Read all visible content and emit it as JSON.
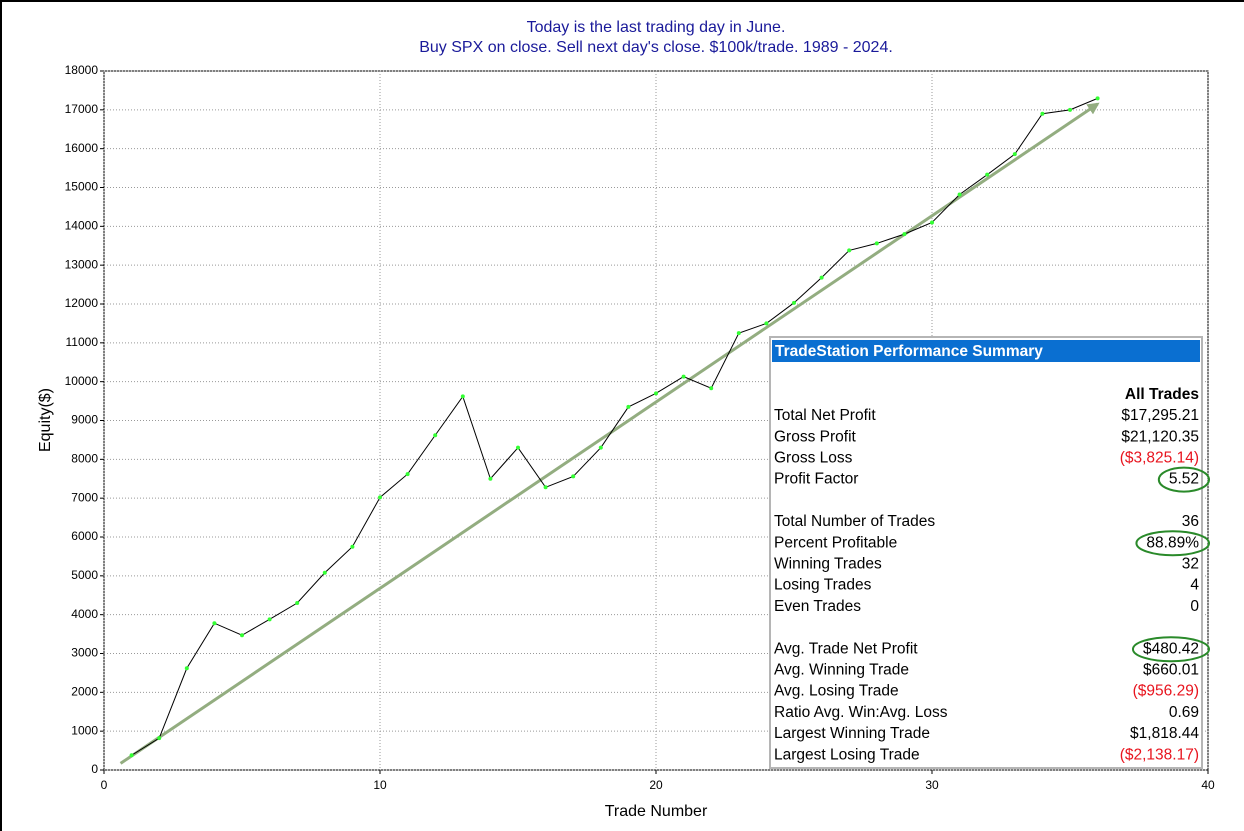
{
  "chart_data": {
    "type": "line",
    "title": "Today is the last trading day in June.",
    "subtitle": "Buy SPX on close. Sell next day's close. $100k/trade. 1989 - 2024.",
    "x_label": "Trade Number",
    "y_label": "Equity($)",
    "x": [
      1,
      2,
      3,
      4,
      5,
      6,
      7,
      8,
      9,
      10,
      11,
      12,
      13,
      14,
      15,
      16,
      17,
      18,
      19,
      20,
      21,
      22,
      23,
      24,
      25,
      26,
      27,
      28,
      29,
      30,
      31,
      32,
      33,
      34,
      35,
      36
    ],
    "series": [
      {
        "color": "#000000",
        "marker_color": "#33ff33",
        "values": [
          380,
          820,
          2620,
          3780,
          3470,
          3880,
          4300,
          5080,
          5750,
          7020,
          7620,
          8620,
          9620,
          7500,
          8300,
          7280,
          7560,
          8300,
          9350,
          9700,
          10130,
          9830,
          11250,
          11500,
          12030,
          12680,
          13380,
          13560,
          13800,
          14100,
          14820,
          15330,
          15860,
          16900,
          17000,
          17295
        ]
      }
    ],
    "trendline": {
      "color": "#93ad80",
      "x": [
        0.6,
        36
      ],
      "y": [
        170,
        17150
      ]
    },
    "xlim": [
      0,
      40
    ],
    "xticks": [
      0,
      10,
      20,
      30,
      40
    ],
    "ylim": [
      0,
      18000
    ],
    "yticks": [
      0,
      1000,
      2000,
      3000,
      4000,
      5000,
      6000,
      7000,
      8000,
      9000,
      10000,
      11000,
      12000,
      13000,
      14000,
      15000,
      16000,
      17000,
      18000
    ],
    "grid": true
  },
  "table": {
    "title": "TradeStation Performance Summary",
    "column": "All Trades",
    "groups": [
      [
        {
          "label": "Total Net Profit",
          "value": "$17,295.21"
        },
        {
          "label": "Gross Profit",
          "value": "$21,120.35"
        },
        {
          "label": "Gross Loss",
          "value": "($3,825.14)",
          "negative": true
        },
        {
          "label": "Profit Factor",
          "value": "5.52",
          "highlight": true
        }
      ],
      [
        {
          "label": "Total Number of Trades",
          "value": "36"
        },
        {
          "label": "Percent Profitable",
          "value": "88.89%",
          "highlight": true
        },
        {
          "label": "Winning Trades",
          "value": "32"
        },
        {
          "label": "Losing Trades",
          "value": "4"
        },
        {
          "label": "Even Trades",
          "value": "0"
        }
      ],
      [
        {
          "label": "Avg. Trade Net Profit",
          "value": "$480.42",
          "highlight": true
        },
        {
          "label": "Avg. Winning Trade",
          "value": "$660.01"
        },
        {
          "label": "Avg. Losing Trade",
          "value": "($956.29)",
          "negative": true
        },
        {
          "label": "Ratio Avg. Win:Avg. Loss",
          "value": "0.69"
        },
        {
          "label": "Largest Winning Trade",
          "value": "$1,818.44"
        },
        {
          "label": "Largest Losing Trade",
          "value": "($2,138.17)",
          "negative": true
        }
      ]
    ]
  }
}
